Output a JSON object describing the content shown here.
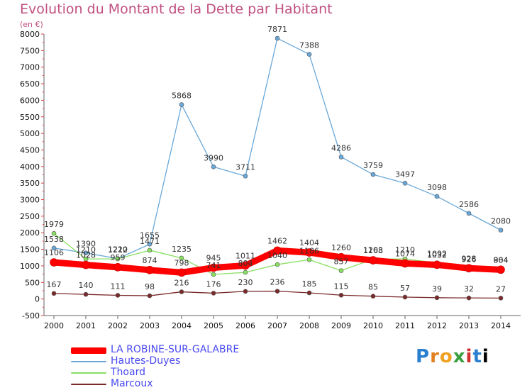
{
  "chart_data": {
    "type": "line",
    "title": "Evolution du Montant de la Dette par Habitant",
    "unit_label": "(en €)",
    "x": [
      "2000",
      "2001",
      "2002",
      "2003",
      "2004",
      "2005",
      "2006",
      "2007",
      "2008",
      "2009",
      "2010",
      "2011",
      "2012",
      "2013",
      "2014"
    ],
    "ylim": [
      -500,
      8000
    ],
    "yticks": [
      -500,
      0,
      500,
      1000,
      1500,
      2000,
      2500,
      3000,
      3500,
      4000,
      4500,
      5000,
      5500,
      6000,
      6500,
      7000,
      7500,
      8000
    ],
    "grid": false,
    "legend_placement": "bottom-left",
    "series": [
      {
        "name": "LA ROBINE-SUR-GALABRE",
        "color": "#ff0000",
        "values": [
          1106,
          1028,
          959,
          874,
          798,
          945,
          1011,
          1462,
          1404,
          1260,
          1168,
          1074,
          1032,
          928,
          884
        ]
      },
      {
        "name": "Hautes-Duyes",
        "color": "#6aa8d8",
        "values": [
          1538,
          1390,
          1220,
          1655,
          5868,
          3990,
          3711,
          7871,
          7388,
          4286,
          3759,
          3497,
          3098,
          2586,
          2080
        ]
      },
      {
        "name": "Thoard",
        "color": "#88e060",
        "values": [
          1979,
          1210,
          1212,
          1471,
          1235,
          741,
          804,
          1040,
          1186,
          857,
          1203,
          1210,
          1092,
          926,
          904
        ]
      },
      {
        "name": "Marcoux",
        "color": "#7a2a2a",
        "values": [
          167,
          140,
          111,
          98,
          216,
          176,
          230,
          236,
          185,
          115,
          85,
          57,
          39,
          32,
          27
        ]
      }
    ]
  },
  "logo_text": [
    "P",
    "r",
    "o",
    "x",
    "i",
    "t",
    "i"
  ]
}
